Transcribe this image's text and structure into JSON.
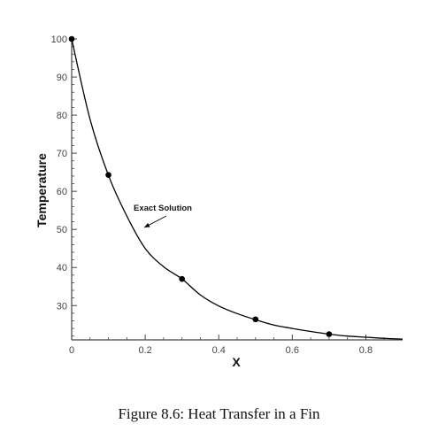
{
  "chart_data": {
    "type": "line",
    "xlabel": "X",
    "ylabel": "Temperature",
    "xlim": [
      0,
      0.9
    ],
    "ylim": [
      21,
      100
    ],
    "x_ticks": [
      0,
      0.2,
      0.4,
      0.6,
      0.8
    ],
    "x_tick_labels": [
      "0",
      "0.2",
      "0.4",
      "0.6",
      "0.8"
    ],
    "y_ticks": [
      30,
      40,
      50,
      60,
      70,
      80,
      90,
      100
    ],
    "y_tick_labels": [
      "30",
      "40",
      "50",
      "60",
      "70",
      "80",
      "90",
      "100"
    ],
    "series": [
      {
        "marker": "line",
        "x": [
          0,
          0.05,
          0.1,
          0.15,
          0.2,
          0.25,
          0.3,
          0.35,
          0.4,
          0.45,
          0.5,
          0.55,
          0.6,
          0.65,
          0.7,
          0.75,
          0.8,
          0.85,
          0.9
        ],
        "y": [
          100,
          78.9,
          64.2,
          53.5,
          45.0,
          40.2,
          37.0,
          32.8,
          29.9,
          27.9,
          26.3,
          24.9,
          24.0,
          23.2,
          22.5,
          22.0,
          21.7,
          21.4,
          21.2
        ]
      },
      {
        "marker": "circle",
        "x": [
          0,
          0.1,
          0.3,
          0.5,
          0.7
        ],
        "y": [
          100,
          64.3,
          37.0,
          26.4,
          22.5
        ]
      }
    ],
    "annotations": [
      {
        "text": "Exact Solution",
        "points_to": [
          0.185,
          49.5
        ]
      }
    ],
    "grid": false,
    "legend": "none"
  },
  "caption": "Figure 8.6: Heat Transfer in a Fin",
  "colors": {
    "line": "#000000",
    "axis": "#444444",
    "marker": "#000000"
  }
}
